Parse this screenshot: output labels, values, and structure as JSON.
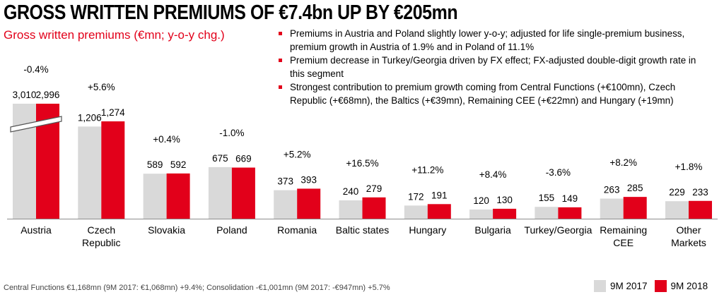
{
  "title": "GROSS WRITTEN PREMIUMS OF €7.4bn UP BY €205mn",
  "chart_title": "Gross written premiums (€mn; y-o-y chg.)",
  "bullets": [
    "Premiums in Austria and Poland slightly lower y-o-y; adjusted for life single-premium business, premium growth in Austria of 1.9% and in Poland of 11.1%",
    "Premium decrease in Turkey/Georgia driven by FX effect; FX-adjusted double-digit growth rate in this segment",
    "Strongest contribution to premium growth coming from Central Functions (+€100mn), Czech Republic (+€68mn), the Baltics (+€39mn), Remaining CEE (+€22mn) and Hungary (+19mn)"
  ],
  "footnote": "Central Functions €1,168mn (9M 2017: €1,068mn) +9.4%; Consolidation -€1,001mn (9M 2017: -€947mn) +5.7%",
  "colors": {
    "prev": "#d9d9d9",
    "curr": "#e2001a",
    "accent": "#e2001a"
  },
  "chart_data": {
    "type": "bar",
    "title": "Gross written premiums (€mn; y-o-y chg.)",
    "categories": [
      [
        "Austria"
      ],
      [
        "Czech",
        "Republic"
      ],
      [
        "Slovakia"
      ],
      [
        "Poland"
      ],
      [
        "Romania"
      ],
      [
        "Baltic states"
      ],
      [
        "Hungary"
      ],
      [
        "Bulgaria"
      ],
      [
        "Turkey/Georgia"
      ],
      [
        "Remaining",
        "CEE"
      ],
      [
        "Other",
        "Markets"
      ]
    ],
    "series": [
      {
        "name": "9M 2017",
        "values": [
          3010,
          1206,
          589,
          675,
          373,
          240,
          172,
          120,
          155,
          263,
          229
        ],
        "labels": [
          "3,010",
          "1,206",
          "589",
          "675",
          "373",
          "240",
          "172",
          "120",
          "155",
          "263",
          "229"
        ]
      },
      {
        "name": "9M 2018",
        "values": [
          2996,
          1274,
          592,
          669,
          393,
          279,
          191,
          130,
          149,
          285,
          233
        ],
        "labels": [
          "2,996",
          "1,274",
          "592",
          "669",
          "393",
          "279",
          "191",
          "130",
          "149",
          "285",
          "233"
        ]
      }
    ],
    "changes": [
      "-0.4%",
      "+5.6%",
      "+0.4%",
      "-1.0%",
      "+5.2%",
      "+16.5%",
      "+11.2%",
      "+8.4%",
      "-3.6%",
      "+8.2%",
      "+1.8%"
    ],
    "axis_break": "Austria",
    "legend": "bottom-right",
    "grid": false
  }
}
